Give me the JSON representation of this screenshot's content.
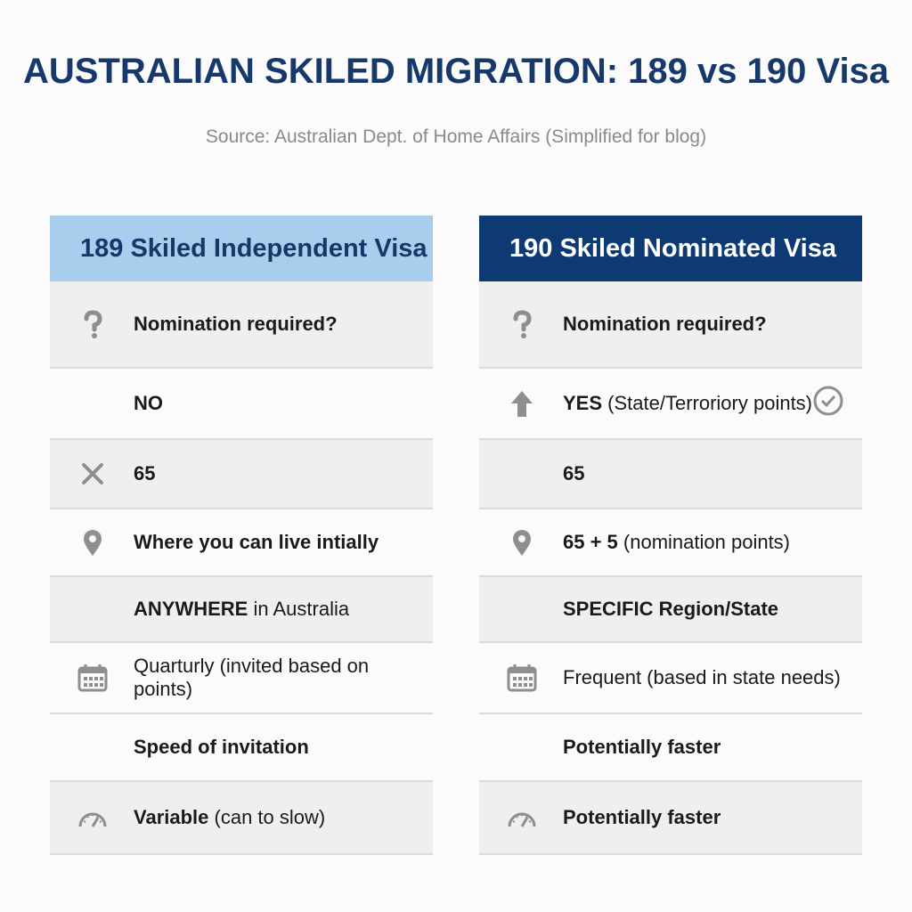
{
  "title": "AUSTRALIAN SKILED MIGRATION: 189 vs 190 Visa",
  "source": "Source: Australian Dept. of Home Affairs (Simplified for blog)",
  "columns": [
    {
      "header": "189 Skiled Independent Visa",
      "rows": [
        {
          "bold": "Nomination required?"
        },
        {
          "bold": "NO"
        },
        {
          "bold": "65"
        },
        {
          "bold": "Where you can live intially"
        },
        {
          "bold": "ANYWHERE",
          "text": "in Australia"
        },
        {
          "text": "Quarturly (invited based on points)"
        },
        {
          "bold": "Speed of invitation"
        },
        {
          "bold": "Variable",
          "text": "(can to slow)"
        }
      ]
    },
    {
      "header": "190 Skiled Nominated Visa",
      "rows": [
        {
          "bold": "Nomination required?"
        },
        {
          "bold": "YES",
          "text": "(State/Terroriory points)"
        },
        {
          "bold": "65"
        },
        {
          "bold": "65 + 5",
          "text": "(nomination points)"
        },
        {
          "bold": "SPECIFIC Region/State"
        },
        {
          "text": "Frequent (based in state needs)"
        },
        {
          "bold": "Potentially faster"
        },
        {
          "bold": "Potentially faster"
        }
      ]
    }
  ]
}
